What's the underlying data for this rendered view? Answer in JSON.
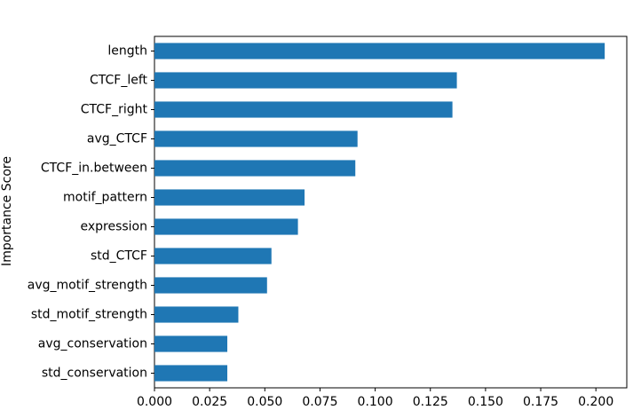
{
  "chart_data": {
    "type": "bar",
    "orientation": "horizontal",
    "title": "",
    "xlabel": "",
    "ylabel": "Importance Score",
    "categories": [
      "length",
      "CTCF_left",
      "CTCF_right",
      "avg_CTCF",
      "CTCF_in.between",
      "motif_pattern",
      "expression",
      "std_CTCF",
      "avg_motif_strength",
      "std_motif_strength",
      "avg_conservation",
      "std_conservation"
    ],
    "values": [
      0.204,
      0.137,
      0.135,
      0.092,
      0.091,
      0.068,
      0.065,
      0.053,
      0.051,
      0.038,
      0.033,
      0.033
    ],
    "xlim": [
      0.0,
      0.214
    ],
    "xticks": [
      "0.000",
      "0.025",
      "0.050",
      "0.075",
      "0.100",
      "0.125",
      "0.150",
      "0.175",
      "0.200"
    ],
    "grid": false,
    "legend": "none",
    "bar_color": "#1f77b4"
  }
}
